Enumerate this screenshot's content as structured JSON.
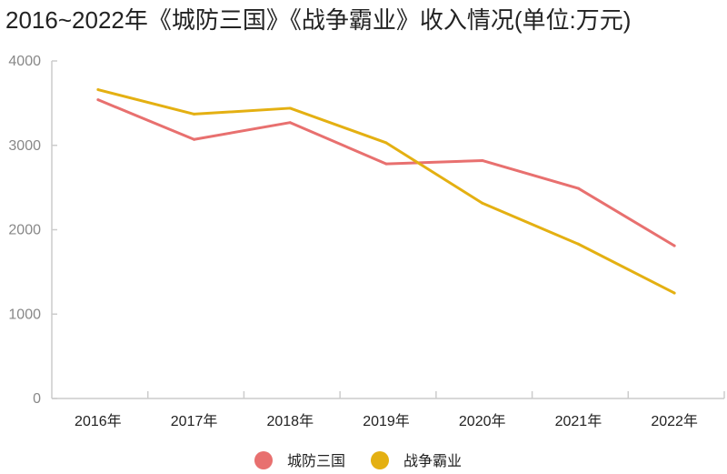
{
  "chart_data": {
    "type": "line",
    "title": "2016~2022年《城防三国》《战争霸业》收入情况(单位:万元)",
    "categories": [
      "2016年",
      "2017年",
      "2018年",
      "2019年",
      "2020年",
      "2021年",
      "2022年"
    ],
    "series": [
      {
        "name": "城防三国",
        "color": "#e8706f",
        "values": [
          3540,
          3070,
          3270,
          2780,
          2820,
          2490,
          1810
        ]
      },
      {
        "name": "战争霸业",
        "color": "#e4b012",
        "values": [
          3660,
          3370,
          3440,
          3030,
          2315,
          1830,
          1250
        ]
      }
    ],
    "yticks": [
      "0",
      "1000",
      "2000",
      "3000",
      "4000"
    ],
    "ylim": [
      0,
      4000
    ],
    "grid": false,
    "legend": "bottom"
  }
}
